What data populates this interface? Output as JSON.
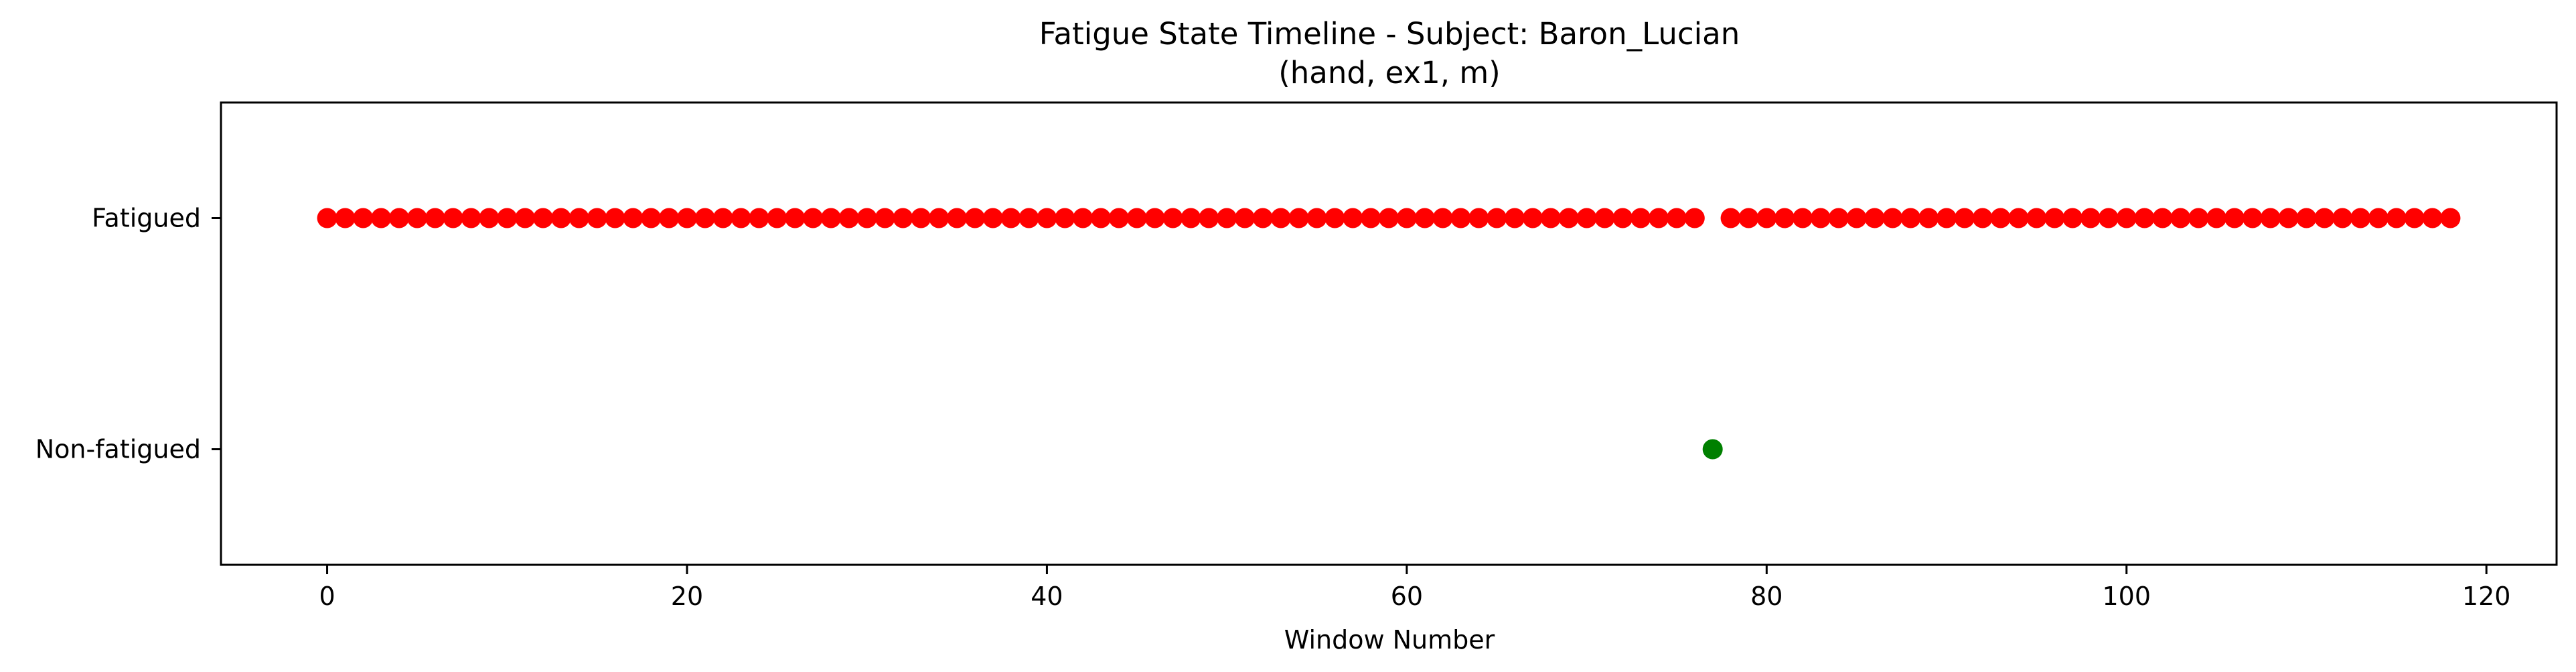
{
  "chart_data": {
    "type": "scatter",
    "title": "Fatigue State Timeline - Subject: Baron_Lucian",
    "subtitle": "(hand, ex1, m)",
    "xlabel": "Window Number",
    "ylabel": "",
    "xlim": [
      -5.9,
      123.9
    ],
    "ylim": [
      -0.5,
      1.5
    ],
    "x_ticks": [
      0,
      20,
      40,
      60,
      80,
      100,
      120
    ],
    "y_ticks": [
      {
        "value": 1,
        "label": "Fatigued"
      },
      {
        "value": 0,
        "label": "Non-fatigued"
      }
    ],
    "grid": false,
    "legend": "none",
    "colors": {
      "fatigued": "#ff0000",
      "non_fatigued": "#008000"
    },
    "series": [
      {
        "color": "#ff0000",
        "x": [
          0,
          1,
          2,
          3,
          4,
          5,
          6,
          7,
          8,
          9,
          10,
          11,
          12,
          13,
          14,
          15,
          16,
          17,
          18,
          19,
          20,
          21,
          22,
          23,
          24,
          25,
          26,
          27,
          28,
          29,
          30,
          31,
          32,
          33,
          34,
          35,
          36,
          37,
          38,
          39,
          40,
          41,
          42,
          43,
          44,
          45,
          46,
          47,
          48,
          49,
          50,
          51,
          52,
          53,
          54,
          55,
          56,
          57,
          58,
          59,
          60,
          61,
          62,
          63,
          64,
          65,
          66,
          67,
          68,
          69,
          70,
          71,
          72,
          73,
          74,
          75,
          76,
          78,
          79,
          80,
          81,
          82,
          83,
          84,
          85,
          86,
          87,
          88,
          89,
          90,
          91,
          92,
          93,
          94,
          95,
          96,
          97,
          98,
          99,
          100,
          101,
          102,
          103,
          104,
          105,
          106,
          107,
          108,
          109,
          110,
          111,
          112,
          113,
          114,
          115,
          116,
          117,
          118
        ],
        "y": 1
      },
      {
        "color": "#008000",
        "x": [
          77
        ],
        "y": 0
      }
    ]
  }
}
